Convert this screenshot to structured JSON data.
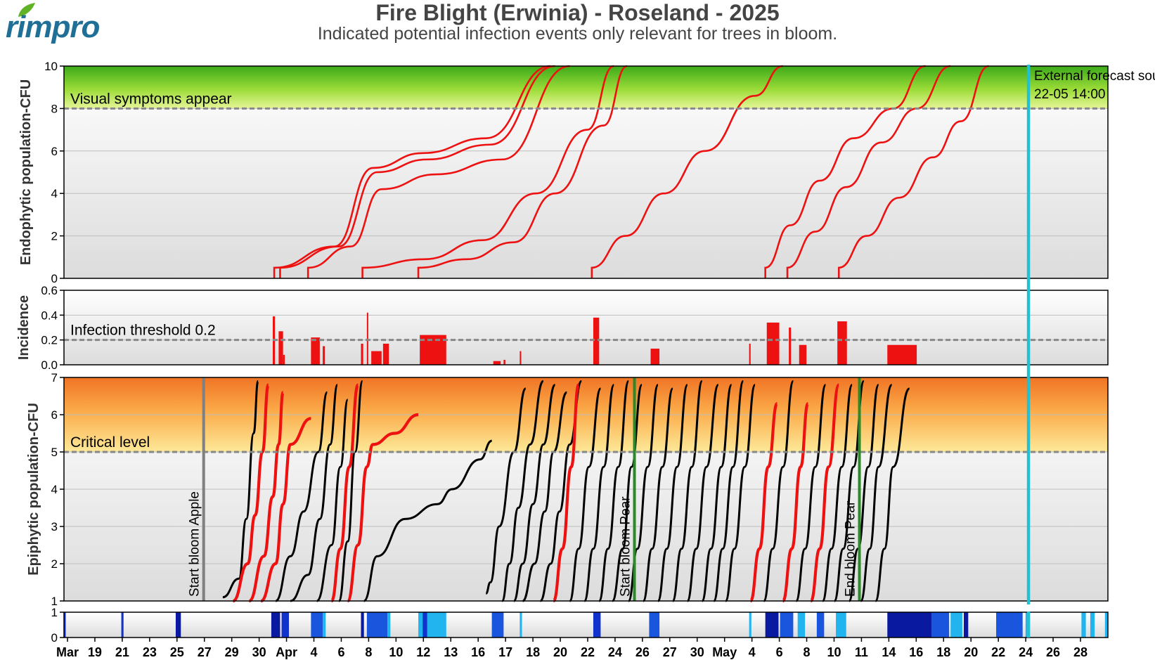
{
  "logo": {
    "text": "rimpro"
  },
  "title": "Fire Blight (Erwinia) - Roseland - 2025",
  "subtitle": "Indicated potential infection events only relevant for trees in bloom.",
  "colors": {
    "infection_red": "#ee1111",
    "forecast_cyan": "#22c0d0",
    "bloom_green": "#2a8a2a",
    "threshold_gray": "#888888"
  },
  "x_axis": {
    "ticks": [
      "Mar",
      "19",
      "21",
      "23",
      "25",
      "27",
      "29",
      "30",
      "Apr",
      "4",
      "6",
      "8",
      "10",
      "12",
      "13",
      "16",
      "17",
      "18",
      "20",
      "22",
      "24",
      "26",
      "27",
      "30",
      "May",
      "4",
      "6",
      "8",
      "10",
      "11",
      "14",
      "16",
      "18",
      "20",
      "22",
      "24",
      "26",
      "28"
    ]
  },
  "forecast": {
    "label1": "External forecast source",
    "label2": "22-05 14:00"
  },
  "panels": {
    "endophytic": {
      "ylabel": "Endophytic population-CFU",
      "yticks": [
        "0",
        "2",
        "4",
        "6",
        "8",
        "10"
      ],
      "ylim": [
        0,
        10
      ],
      "threshold_label": "Visual symptoms appear",
      "threshold": 8
    },
    "incidence": {
      "ylabel": "Incidence",
      "yticks": [
        "0.0",
        "0.2",
        "0.4",
        "0.6"
      ],
      "ylim": [
        0,
        0.6
      ],
      "threshold_label": "Infection threshold  0.2",
      "threshold": 0.2
    },
    "epiphytic": {
      "ylabel": "Epiphytic population-CFU",
      "yticks": [
        "1",
        "2",
        "3",
        "4",
        "5",
        "6",
        "7"
      ],
      "ylim": [
        1,
        7
      ],
      "threshold_label": "Critical level",
      "threshold": 5,
      "markers": [
        {
          "label": "Start bloom Apple",
          "color": "#808080",
          "x": 9.5
        },
        {
          "label": "Start bloom Pear",
          "color": "#2a8a2a",
          "x": 38.8
        },
        {
          "label": "End bloom Pear",
          "color": "#2a8a2a",
          "x": 54.1
        }
      ]
    },
    "wetness": {
      "yticks": [
        "0",
        "1"
      ]
    }
  },
  "chart_data": {
    "type": "line",
    "x_unit": "days since 17 Mar 2025",
    "xlim": [
      0,
      71
    ],
    "forecast_x": 65.6,
    "endophytic_curves": [
      {
        "x": [
          14.3,
          18.4,
          21.0,
          24.4,
          28.7,
          33.1
        ],
        "y": [
          0.5,
          1.5,
          5.2,
          5.9,
          6.6,
          10
        ]
      },
      {
        "x": [
          14.7,
          18.7,
          21.3,
          24.7,
          29.0,
          33.4
        ],
        "y": [
          0.5,
          1.5,
          5.0,
          5.6,
          6.3,
          10
        ]
      },
      {
        "x": [
          16.6,
          19.5,
          21.6,
          25.3,
          29.8,
          34.4
        ],
        "y": [
          0.5,
          1.5,
          4.2,
          4.9,
          5.6,
          10
        ]
      },
      {
        "x": [
          20.3,
          24.5,
          28.5,
          32.1,
          35.6,
          37.4
        ],
        "y": [
          0.5,
          0.9,
          1.8,
          4.0,
          7.0,
          10
        ]
      },
      {
        "x": [
          24.1,
          27.4,
          30.6,
          33.4,
          36.7,
          38.3
        ],
        "y": [
          0.5,
          0.9,
          1.7,
          4.0,
          7.2,
          10
        ]
      },
      {
        "x": [
          35.9,
          38.2,
          40.8,
          43.6,
          47.0,
          48.9
        ],
        "y": [
          0.5,
          2.0,
          4.0,
          6.0,
          8.6,
          10
        ]
      },
      {
        "x": [
          47.7,
          49.4,
          51.4,
          53.7,
          56.4,
          58.6
        ],
        "y": [
          0.5,
          2.5,
          4.6,
          6.6,
          8.0,
          10
        ]
      },
      {
        "x": [
          49.2,
          51.1,
          53.2,
          55.6,
          58.0,
          60.3
        ],
        "y": [
          0.5,
          2.2,
          4.3,
          6.4,
          8.0,
          10
        ]
      },
      {
        "x": [
          52.7,
          54.6,
          56.8,
          59.1,
          61.0,
          62.9
        ],
        "y": [
          0.5,
          2.0,
          3.8,
          5.7,
          7.4,
          10
        ]
      }
    ],
    "incidence_bars": [
      {
        "x": 14.2,
        "w": 0.15,
        "y": 0.39
      },
      {
        "x": 14.6,
        "w": 0.3,
        "y": 0.27
      },
      {
        "x": 14.9,
        "w": 0.12,
        "y": 0.08
      },
      {
        "x": 16.8,
        "w": 0.6,
        "y": 0.22
      },
      {
        "x": 17.6,
        "w": 0.15,
        "y": 0.15
      },
      {
        "x": 20.2,
        "w": 0.15,
        "y": 0.17
      },
      {
        "x": 20.6,
        "w": 0.06,
        "y": 0.42
      },
      {
        "x": 20.9,
        "w": 0.7,
        "y": 0.11
      },
      {
        "x": 21.7,
        "w": 0.4,
        "y": 0.17
      },
      {
        "x": 24.2,
        "w": 1.8,
        "y": 0.24
      },
      {
        "x": 29.2,
        "w": 0.5,
        "y": 0.03
      },
      {
        "x": 29.9,
        "w": 0.12,
        "y": 0.04
      },
      {
        "x": 31.0,
        "w": 0.1,
        "y": 0.11
      },
      {
        "x": 36.0,
        "w": 0.4,
        "y": 0.38
      },
      {
        "x": 39.9,
        "w": 0.6,
        "y": 0.13
      },
      {
        "x": 46.6,
        "w": 0.1,
        "y": 0.17
      },
      {
        "x": 47.8,
        "w": 0.85,
        "y": 0.34
      },
      {
        "x": 49.3,
        "w": 0.15,
        "y": 0.3
      },
      {
        "x": 50.0,
        "w": 0.5,
        "y": 0.16
      },
      {
        "x": 52.6,
        "w": 0.65,
        "y": 0.35
      },
      {
        "x": 56.0,
        "w": 2.0,
        "y": 0.16
      }
    ],
    "epiphytic_curves": [
      {
        "c": "k",
        "x": [
          10.8,
          11.9,
          12.4,
          12.9,
          13.2
        ],
        "y": [
          1.1,
          1.6,
          3.2,
          5.5,
          6.9
        ]
      },
      {
        "c": "r",
        "x": [
          11.5,
          12.5,
          13.0,
          13.5,
          13.9
        ],
        "y": [
          1.0,
          2.0,
          3.3,
          5.0,
          6.8
        ]
      },
      {
        "c": "r",
        "x": [
          12.6,
          13.6,
          14.2,
          14.6,
          14.9
        ],
        "y": [
          1.0,
          2.2,
          3.8,
          5.2,
          6.6
        ]
      },
      {
        "c": "r",
        "x": [
          13.4,
          14.4,
          14.9,
          15.4,
          16.8
        ],
        "y": [
          1.0,
          2.0,
          3.6,
          5.2,
          5.9
        ]
      },
      {
        "c": "k",
        "x": [
          14.4,
          15.4,
          16.3,
          17.3,
          17.9
        ],
        "y": [
          1.0,
          2.2,
          3.4,
          5.0,
          6.6
        ]
      },
      {
        "c": "k",
        "x": [
          15.4,
          16.6,
          17.4,
          18.1,
          18.6
        ],
        "y": [
          1.0,
          1.7,
          3.2,
          5.2,
          6.8
        ]
      },
      {
        "c": "k",
        "x": [
          17.2,
          18.2,
          18.8,
          19.3
        ],
        "y": [
          1.0,
          2.5,
          4.6,
          6.4
        ]
      },
      {
        "c": "r",
        "x": [
          18.2,
          18.8,
          19.4,
          20.0
        ],
        "y": [
          1.0,
          2.4,
          4.6,
          6.8
        ]
      },
      {
        "c": "k",
        "x": [
          18.7,
          19.3,
          19.8,
          20.3
        ],
        "y": [
          1.0,
          2.6,
          5.0,
          6.9
        ]
      },
      {
        "c": "r",
        "x": [
          19.3,
          20.0,
          20.6,
          21.0,
          22.5,
          24.1
        ],
        "y": [
          1.0,
          2.5,
          4.6,
          5.2,
          5.5,
          6.0
        ]
      },
      {
        "c": "k",
        "x": [
          20.4,
          21.3,
          23.2,
          25.4,
          26.4,
          28.3,
          29.1
        ],
        "y": [
          1.0,
          2.2,
          3.2,
          3.6,
          4.0,
          4.8,
          5.3
        ]
      },
      {
        "c": "k",
        "x": [
          28.7,
          29.0,
          29.6,
          30.6,
          31.4
        ],
        "y": [
          1.2,
          1.5,
          3.0,
          5.0,
          6.7
        ]
      },
      {
        "c": "k",
        "x": [
          29.8,
          30.3,
          30.9,
          31.7,
          32.6
        ],
        "y": [
          1.0,
          2.0,
          3.5,
          5.2,
          6.9
        ]
      },
      {
        "c": "k",
        "x": [
          30.6,
          31.2,
          31.9,
          32.6,
          33.4
        ],
        "y": [
          1.0,
          2.0,
          3.6,
          5.2,
          6.8
        ]
      },
      {
        "c": "k",
        "x": [
          31.2,
          32.0,
          32.7,
          33.3,
          34.2
        ],
        "y": [
          1.0,
          2.0,
          3.4,
          5.0,
          6.6
        ]
      },
      {
        "c": "k",
        "x": [
          32.4,
          33.1,
          33.7,
          34.4,
          35.2
        ],
        "y": [
          1.0,
          2.0,
          3.4,
          5.2,
          6.9
        ]
      },
      {
        "c": "r",
        "x": [
          33.3,
          33.9,
          34.5,
          35.0
        ],
        "y": [
          1.0,
          2.4,
          4.6,
          6.8
        ]
      },
      {
        "c": "k",
        "x": [
          34.4,
          35.0,
          35.7,
          36.5
        ],
        "y": [
          1.0,
          2.4,
          4.6,
          6.7
        ]
      },
      {
        "c": "k",
        "x": [
          35.4,
          36.0,
          36.7,
          37.4
        ],
        "y": [
          1.0,
          2.4,
          4.6,
          6.8
        ]
      },
      {
        "c": "k",
        "x": [
          36.4,
          37.0,
          37.7,
          38.4
        ],
        "y": [
          1.0,
          2.4,
          4.6,
          6.9
        ]
      },
      {
        "c": "k",
        "x": [
          37.3,
          38.0,
          38.6,
          39.3
        ],
        "y": [
          1.0,
          2.4,
          4.6,
          6.8
        ]
      },
      {
        "c": "k",
        "x": [
          38.4,
          39.0,
          39.7,
          40.4
        ],
        "y": [
          1.0,
          2.4,
          4.6,
          6.8
        ]
      },
      {
        "c": "k",
        "x": [
          39.4,
          40.0,
          40.7,
          41.4
        ],
        "y": [
          1.0,
          2.4,
          4.6,
          6.7
        ]
      },
      {
        "c": "k",
        "x": [
          40.4,
          41.0,
          41.7,
          42.4
        ],
        "y": [
          1.0,
          2.4,
          4.6,
          6.8
        ]
      },
      {
        "c": "k",
        "x": [
          41.4,
          42.0,
          42.7,
          43.4
        ],
        "y": [
          1.0,
          2.4,
          4.6,
          6.9
        ]
      },
      {
        "c": "k",
        "x": [
          42.4,
          43.0,
          43.7,
          44.5
        ],
        "y": [
          1.0,
          2.4,
          4.6,
          6.8
        ]
      },
      {
        "c": "k",
        "x": [
          43.4,
          44.0,
          44.7,
          45.4
        ],
        "y": [
          1.0,
          2.4,
          4.6,
          6.8
        ]
      },
      {
        "c": "k",
        "x": [
          44.2,
          44.8,
          45.5,
          46.2
        ],
        "y": [
          1.0,
          2.4,
          4.6,
          6.9
        ]
      },
      {
        "c": "k",
        "x": [
          45.0,
          45.6,
          46.3,
          47.0
        ],
        "y": [
          1.0,
          2.4,
          4.6,
          6.8
        ]
      },
      {
        "c": "r",
        "x": [
          46.7,
          47.3,
          47.9,
          48.5
        ],
        "y": [
          1.0,
          2.4,
          4.6,
          6.3
        ]
      },
      {
        "c": "k",
        "x": [
          47.6,
          48.2,
          48.9,
          49.6
        ],
        "y": [
          1.0,
          2.4,
          4.6,
          6.9
        ]
      },
      {
        "c": "r",
        "x": [
          48.9,
          49.5,
          50.1,
          50.6
        ],
        "y": [
          1.0,
          2.4,
          4.6,
          6.3
        ]
      },
      {
        "c": "k",
        "x": [
          49.8,
          50.4,
          51.1,
          51.8
        ],
        "y": [
          1.0,
          2.4,
          4.6,
          6.8
        ]
      },
      {
        "c": "r",
        "x": [
          50.8,
          51.4,
          52.0,
          52.7
        ],
        "y": [
          1.0,
          2.4,
          4.6,
          6.8
        ]
      },
      {
        "c": "k",
        "x": [
          51.6,
          52.2,
          52.9,
          53.6
        ],
        "y": [
          1.0,
          2.4,
          4.6,
          6.8
        ]
      },
      {
        "c": "k",
        "x": [
          52.4,
          53.0,
          53.7,
          54.4
        ],
        "y": [
          1.0,
          2.4,
          4.6,
          6.9
        ]
      },
      {
        "c": "k",
        "x": [
          53.4,
          54.0,
          54.7,
          55.4
        ],
        "y": [
          1.0,
          2.4,
          4.6,
          6.8
        ]
      },
      {
        "c": "k",
        "x": [
          54.2,
          54.8,
          55.4,
          56.3
        ],
        "y": [
          1.0,
          2.4,
          4.6,
          6.8
        ]
      },
      {
        "c": "k",
        "x": [
          55.2,
          55.8,
          56.4,
          57.5
        ],
        "y": [
          1.0,
          2.4,
          4.6,
          6.7
        ]
      }
    ],
    "wetness_spans": [
      {
        "x": 0.0,
        "w": 0.12,
        "c": "#1133cc"
      },
      {
        "x": 3.9,
        "w": 0.15,
        "c": "#1133cc"
      },
      {
        "x": 7.6,
        "w": 0.35,
        "c": "#0a1aa0"
      },
      {
        "x": 14.1,
        "w": 0.6,
        "c": "#0a1aa0"
      },
      {
        "x": 14.8,
        "w": 0.5,
        "c": "#1133cc"
      },
      {
        "x": 16.8,
        "w": 0.8,
        "c": "#1a55dd"
      },
      {
        "x": 17.6,
        "w": 0.2,
        "c": "#22b4ee"
      },
      {
        "x": 20.2,
        "w": 0.2,
        "c": "#0a1aa0"
      },
      {
        "x": 20.6,
        "w": 1.4,
        "c": "#1a55dd"
      },
      {
        "x": 22.0,
        "w": 0.2,
        "c": "#22b4ee"
      },
      {
        "x": 24.1,
        "w": 1.9,
        "c": "#22b4ee"
      },
      {
        "x": 24.4,
        "w": 0.3,
        "c": "#1133cc"
      },
      {
        "x": 29.1,
        "w": 0.8,
        "c": "#1a55dd"
      },
      {
        "x": 31.0,
        "w": 0.15,
        "c": "#22b4ee"
      },
      {
        "x": 36.0,
        "w": 0.5,
        "c": "#1133cc"
      },
      {
        "x": 39.8,
        "w": 0.7,
        "c": "#1a55dd"
      },
      {
        "x": 46.6,
        "w": 0.15,
        "c": "#22b4ee"
      },
      {
        "x": 47.7,
        "w": 0.9,
        "c": "#0a1aa0"
      },
      {
        "x": 48.7,
        "w": 0.9,
        "c": "#1a55dd"
      },
      {
        "x": 49.9,
        "w": 0.5,
        "c": "#22b4ee"
      },
      {
        "x": 51.2,
        "w": 0.5,
        "c": "#1a55dd"
      },
      {
        "x": 52.5,
        "w": 0.7,
        "c": "#22b4ee"
      },
      {
        "x": 56.0,
        "w": 3.0,
        "c": "#0a1aa0"
      },
      {
        "x": 59.0,
        "w": 1.2,
        "c": "#1a55dd"
      },
      {
        "x": 60.3,
        "w": 0.8,
        "c": "#22b4ee"
      },
      {
        "x": 61.2,
        "w": 0.3,
        "c": "#0a1aa0"
      },
      {
        "x": 63.4,
        "w": 1.8,
        "c": "#1a55dd"
      },
      {
        "x": 65.4,
        "w": 0.3,
        "c": "#22b4ee"
      },
      {
        "x": 69.2,
        "w": 0.3,
        "c": "#22b4ee"
      },
      {
        "x": 69.8,
        "w": 0.3,
        "c": "#22b4ee"
      },
      {
        "x": 70.8,
        "w": 0.2,
        "c": "#22b4ee"
      }
    ]
  }
}
